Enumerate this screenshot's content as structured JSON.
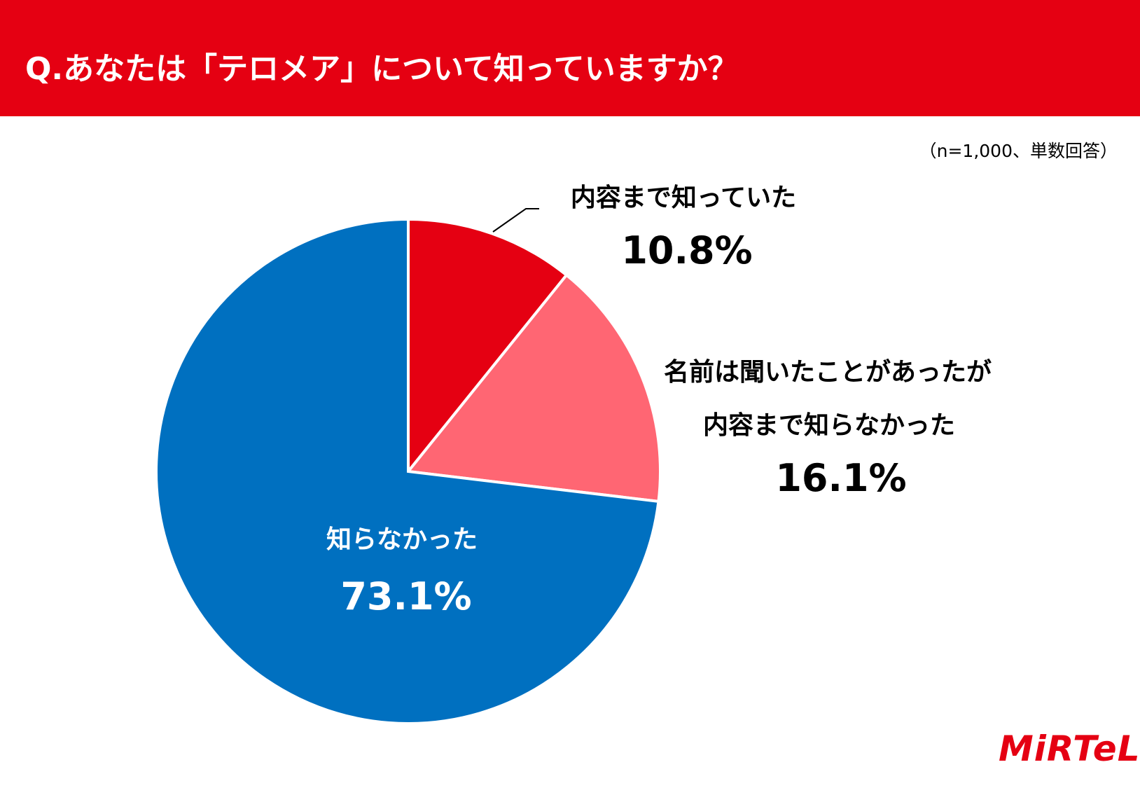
{
  "header": {
    "title": "Q.あなたは「テロメア」について知っていますか？"
  },
  "note": "（n=1,000、単数回答）",
  "chart_data": {
    "type": "pie",
    "title": "Q.あなたは「テロメア」について知っていますか？",
    "start": "12 o'clock, clockwise",
    "slices": [
      {
        "label": "内容まで知っていた",
        "value": 10.8,
        "value_label": "10.8%",
        "color": "#e50012"
      },
      {
        "label": "名前は聞いたことがあったが\n内容まで知らなかった",
        "label_lines": [
          "名前は聞いたことがあったが",
          "内容まで知らなかった"
        ],
        "value": 16.1,
        "value_label": "16.1%",
        "color": "#ff6673"
      },
      {
        "label": "知らなかった",
        "value": 73.1,
        "value_label": "73.1%",
        "color": "#0070c0"
      }
    ]
  },
  "logo": {
    "text": "MiRTeL",
    "color": "#e50012"
  }
}
